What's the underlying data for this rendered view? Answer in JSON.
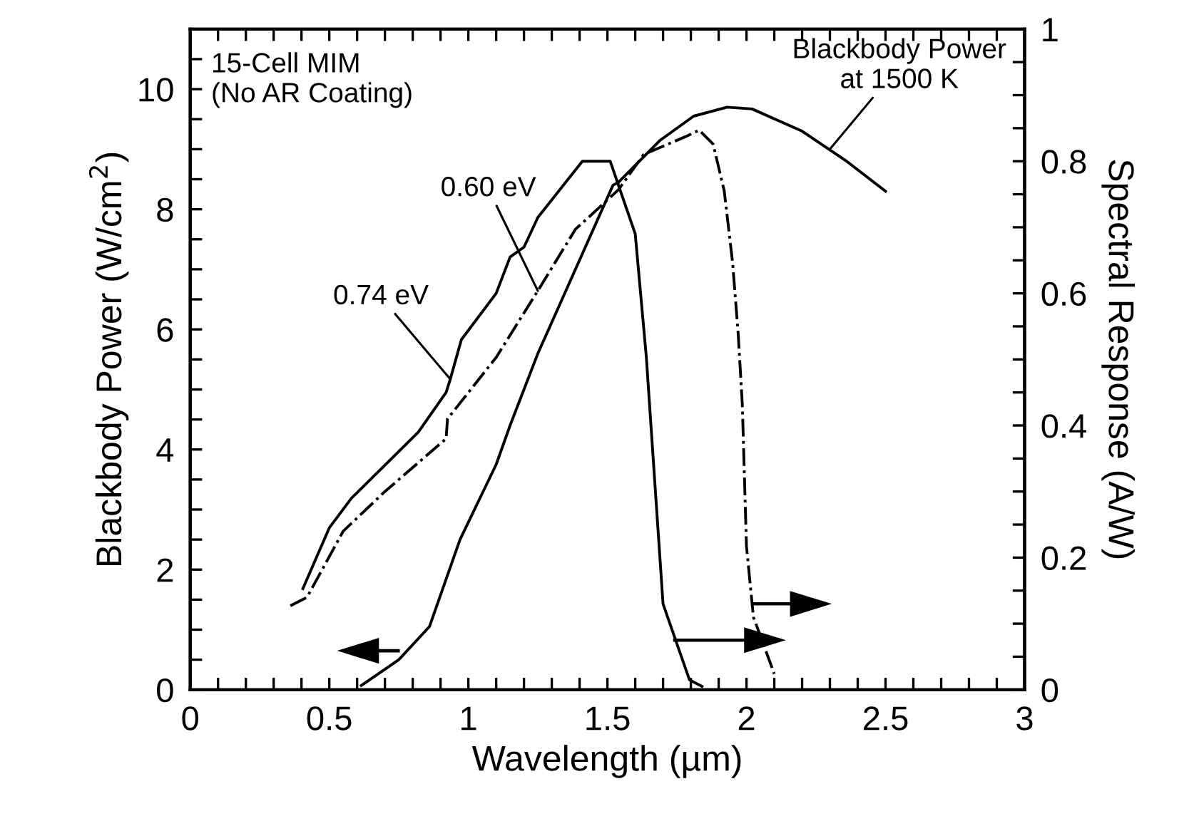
{
  "chart_data": {
    "type": "line",
    "xlabel": "Wavelength (µm)",
    "ylabel": "Blackbody Power (W/cm$^{2}$)",
    "y2label": "Spectral Response (A/W)",
    "xlim": [
      0,
      3
    ],
    "ylim": [
      0,
      11
    ],
    "y2lim": [
      0,
      1
    ],
    "xticks": [
      0,
      {
        "value": 0.1,
        "label": null
      },
      {
        "value": 0.2,
        "label": null
      },
      {
        "value": 0.3,
        "label": null
      },
      {
        "value": 0.4,
        "label": null
      },
      0.5,
      {
        "value": 0.6,
        "label": null
      },
      {
        "value": 0.7,
        "label": null
      },
      {
        "value": 0.8,
        "label": null
      },
      {
        "value": 0.9,
        "label": null
      },
      1,
      {
        "value": 1.1,
        "label": null
      },
      {
        "value": 1.2,
        "label": null
      },
      {
        "value": 1.3,
        "label": null
      },
      {
        "value": 1.4,
        "label": null
      },
      1.5,
      {
        "value": 1.6,
        "label": null
      },
      {
        "value": 1.7,
        "label": null
      },
      {
        "value": 1.8,
        "label": null
      },
      {
        "value": 1.9,
        "label": null
      },
      2,
      {
        "value": 2.1,
        "label": null
      },
      {
        "value": 2.2,
        "label": null
      },
      {
        "value": 2.3,
        "label": null
      },
      {
        "value": 2.4,
        "label": null
      },
      2.5,
      {
        "value": 2.6,
        "label": null
      },
      {
        "value": 2.7,
        "label": null
      },
      {
        "value": 2.8,
        "label": null
      },
      {
        "value": 2.9,
        "label": null
      },
      3
    ],
    "yticks": [
      0,
      {
        "value": 0.5,
        "label": null
      },
      {
        "value": 1,
        "label": null
      },
      {
        "value": 1.5,
        "label": null
      },
      2,
      {
        "value": 2.5,
        "label": null
      },
      {
        "value": 3,
        "label": null
      },
      {
        "value": 3.5,
        "label": null
      },
      4,
      {
        "value": 4.5,
        "label": null
      },
      {
        "value": 5,
        "label": null
      },
      {
        "value": 5.5,
        "label": null
      },
      6,
      {
        "value": 6.5,
        "label": null
      },
      {
        "value": 7,
        "label": null
      },
      {
        "value": 7.5,
        "label": null
      },
      8,
      {
        "value": 8.5,
        "label": null
      },
      {
        "value": 9,
        "label": null
      },
      {
        "value": 9.5,
        "label": null
      },
      10,
      {
        "value": 10.5,
        "label": null
      }
    ],
    "y2ticks": [
      0,
      {
        "value": 0.05,
        "label": null
      },
      {
        "value": 0.1,
        "label": null
      },
      {
        "value": 0.15,
        "label": null
      },
      0.2,
      {
        "value": 0.25,
        "label": null
      },
      {
        "value": 0.3,
        "label": null
      },
      {
        "value": 0.35,
        "label": null
      },
      0.4,
      {
        "value": 0.45,
        "label": null
      },
      {
        "value": 0.5,
        "label": null
      },
      {
        "value": 0.55,
        "label": null
      },
      0.6,
      {
        "value": 0.65,
        "label": null
      },
      {
        "value": 0.7,
        "label": null
      },
      {
        "value": 0.75,
        "label": null
      },
      0.8,
      {
        "value": 0.85,
        "label": null
      },
      {
        "value": 0.9,
        "label": null
      },
      {
        "value": 0.95,
        "label": null
      },
      1
    ],
    "grid": false,
    "legend": false,
    "series": [
      {
        "color": "#000000",
        "line_style": "solid",
        "x": [
          0.615,
          0.75,
          0.86,
          0.97,
          1.1,
          1.15,
          1.25,
          1.52,
          1.54,
          1.69,
          1.81,
          1.93,
          2.02,
          2.2,
          2.36,
          2.5
        ],
        "values": [
          0.07,
          0.5,
          1.05,
          2.5,
          3.75,
          4.4,
          5.6,
          8.4,
          8.45,
          9.15,
          9.55,
          9.7,
          9.67,
          9.3,
          8.8,
          8.3
        ]
      },
      {
        "color": "#000000",
        "line_style": "solid",
        "axis": "y2",
        "x": [
          0.405,
          0.5,
          0.58,
          0.82,
          0.92,
          0.935,
          0.975,
          1.1,
          1.15,
          1.2,
          1.25,
          1.41,
          1.51,
          1.6,
          1.64,
          1.7,
          1.795,
          1.84
        ],
        "values": [
          0.153,
          0.245,
          0.29,
          0.39,
          0.45,
          0.47,
          0.53,
          0.6,
          0.655,
          0.67,
          0.715,
          0.8,
          0.8,
          0.69,
          0.503,
          0.13,
          0.015,
          0.005
        ]
      },
      {
        "color": "#000000",
        "line_style": "dashdot",
        "axis": "y2",
        "x": [
          0.36,
          0.42,
          0.55,
          0.7,
          0.92,
          0.925,
          1.1,
          1.25,
          1.385,
          1.44,
          1.54,
          1.63,
          1.78,
          1.83,
          1.88,
          1.92,
          1.95,
          1.97,
          1.985,
          2.0,
          2.025,
          2.1
        ],
        "values": [
          0.127,
          0.14,
          0.24,
          0.3,
          0.38,
          0.41,
          0.503,
          0.604,
          0.697,
          0.718,
          0.757,
          0.81,
          0.837,
          0.847,
          0.826,
          0.755,
          0.647,
          0.54,
          0.432,
          0.217,
          0.11,
          0.024
        ]
      }
    ],
    "annotations": [
      "15-Cell MIM\n(No AR Coating)",
      {
        "text": "0.60 eV",
        "x": 1.25,
        "y": 6.64
      },
      {
        "text": "0.74 eV",
        "x": 0.935,
        "y": 5.17
      },
      {
        "text": "Blackbody Power\nat 1500 K",
        "x": 2.3,
        "y": 9.0
      }
    ]
  }
}
